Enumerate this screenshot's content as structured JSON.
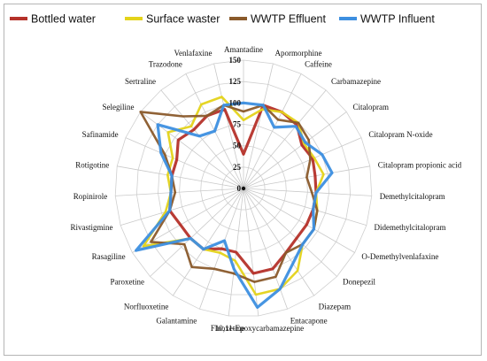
{
  "chart_data": {
    "type": "radar",
    "title": "",
    "categories": [
      "Amantadine",
      "Apormorphine",
      "Caffeine",
      "Carbamazepine",
      "Citalopram",
      "Citalopram N-oxide",
      "Citalopram propionic acid",
      "Demethylcitalopram",
      "Didemethylcitalopram",
      "O-Demethylvenlafaxine",
      "Donepezil",
      "Diazepam",
      "Entacapone",
      "10,11-Epoxycarbamazepine",
      "Fluoxetine",
      "Galantamine",
      "Norfluoxetine",
      "Paroxetine",
      "Rasagiline",
      "Rivastigmine",
      "Ropinirole",
      "Rotigotine",
      "Safinamide",
      "Selegiline",
      "Sertraline",
      "Trazodone",
      "Venlafaxine"
    ],
    "r_ticks": [
      0,
      25,
      50,
      75,
      100,
      125,
      150
    ],
    "r_range": [
      0,
      150
    ],
    "grid": true,
    "legend_position": "top",
    "series": [
      {
        "name": "Bottled water",
        "color": "#b5322a",
        "values": [
          40,
          100,
          100,
          97,
          85,
          88,
          85,
          85,
          85,
          85,
          85,
          90,
          100,
          100,
          75,
          75,
          85,
          85,
          85,
          90,
          85,
          85,
          85,
          95,
          90,
          95,
          95
        ]
      },
      {
        "name": "Surface waster",
        "color": "#e4d31a",
        "values": [
          80,
          95,
          100,
          100,
          88,
          90,
          95,
          85,
          90,
          95,
          95,
          115,
          125,
          125,
          85,
          80,
          85,
          85,
          135,
          95,
          85,
          90,
          90,
          110,
          95,
          110,
          110
        ]
      },
      {
        "name": "WWTP Effluent",
        "color": "#8a5a2b",
        "values": [
          90,
          100,
          90,
          100,
          95,
          85,
          75,
          80,
          90,
          95,
          95,
          90,
          110,
          110,
          100,
          100,
          110,
          95,
          125,
          90,
          80,
          85,
          100,
          150,
          110,
          95,
          100
        ]
      },
      {
        "name": "WWTP Influent",
        "color": "#3d8fe0",
        "values": [
          100,
          100,
          80,
          95,
          90,
          100,
          105,
          85,
          85,
          95,
          95,
          105,
          125,
          140,
          95,
          65,
          85,
          85,
          145,
          90,
          85,
          85,
          105,
          125,
          80,
          75,
          100
        ]
      }
    ]
  }
}
